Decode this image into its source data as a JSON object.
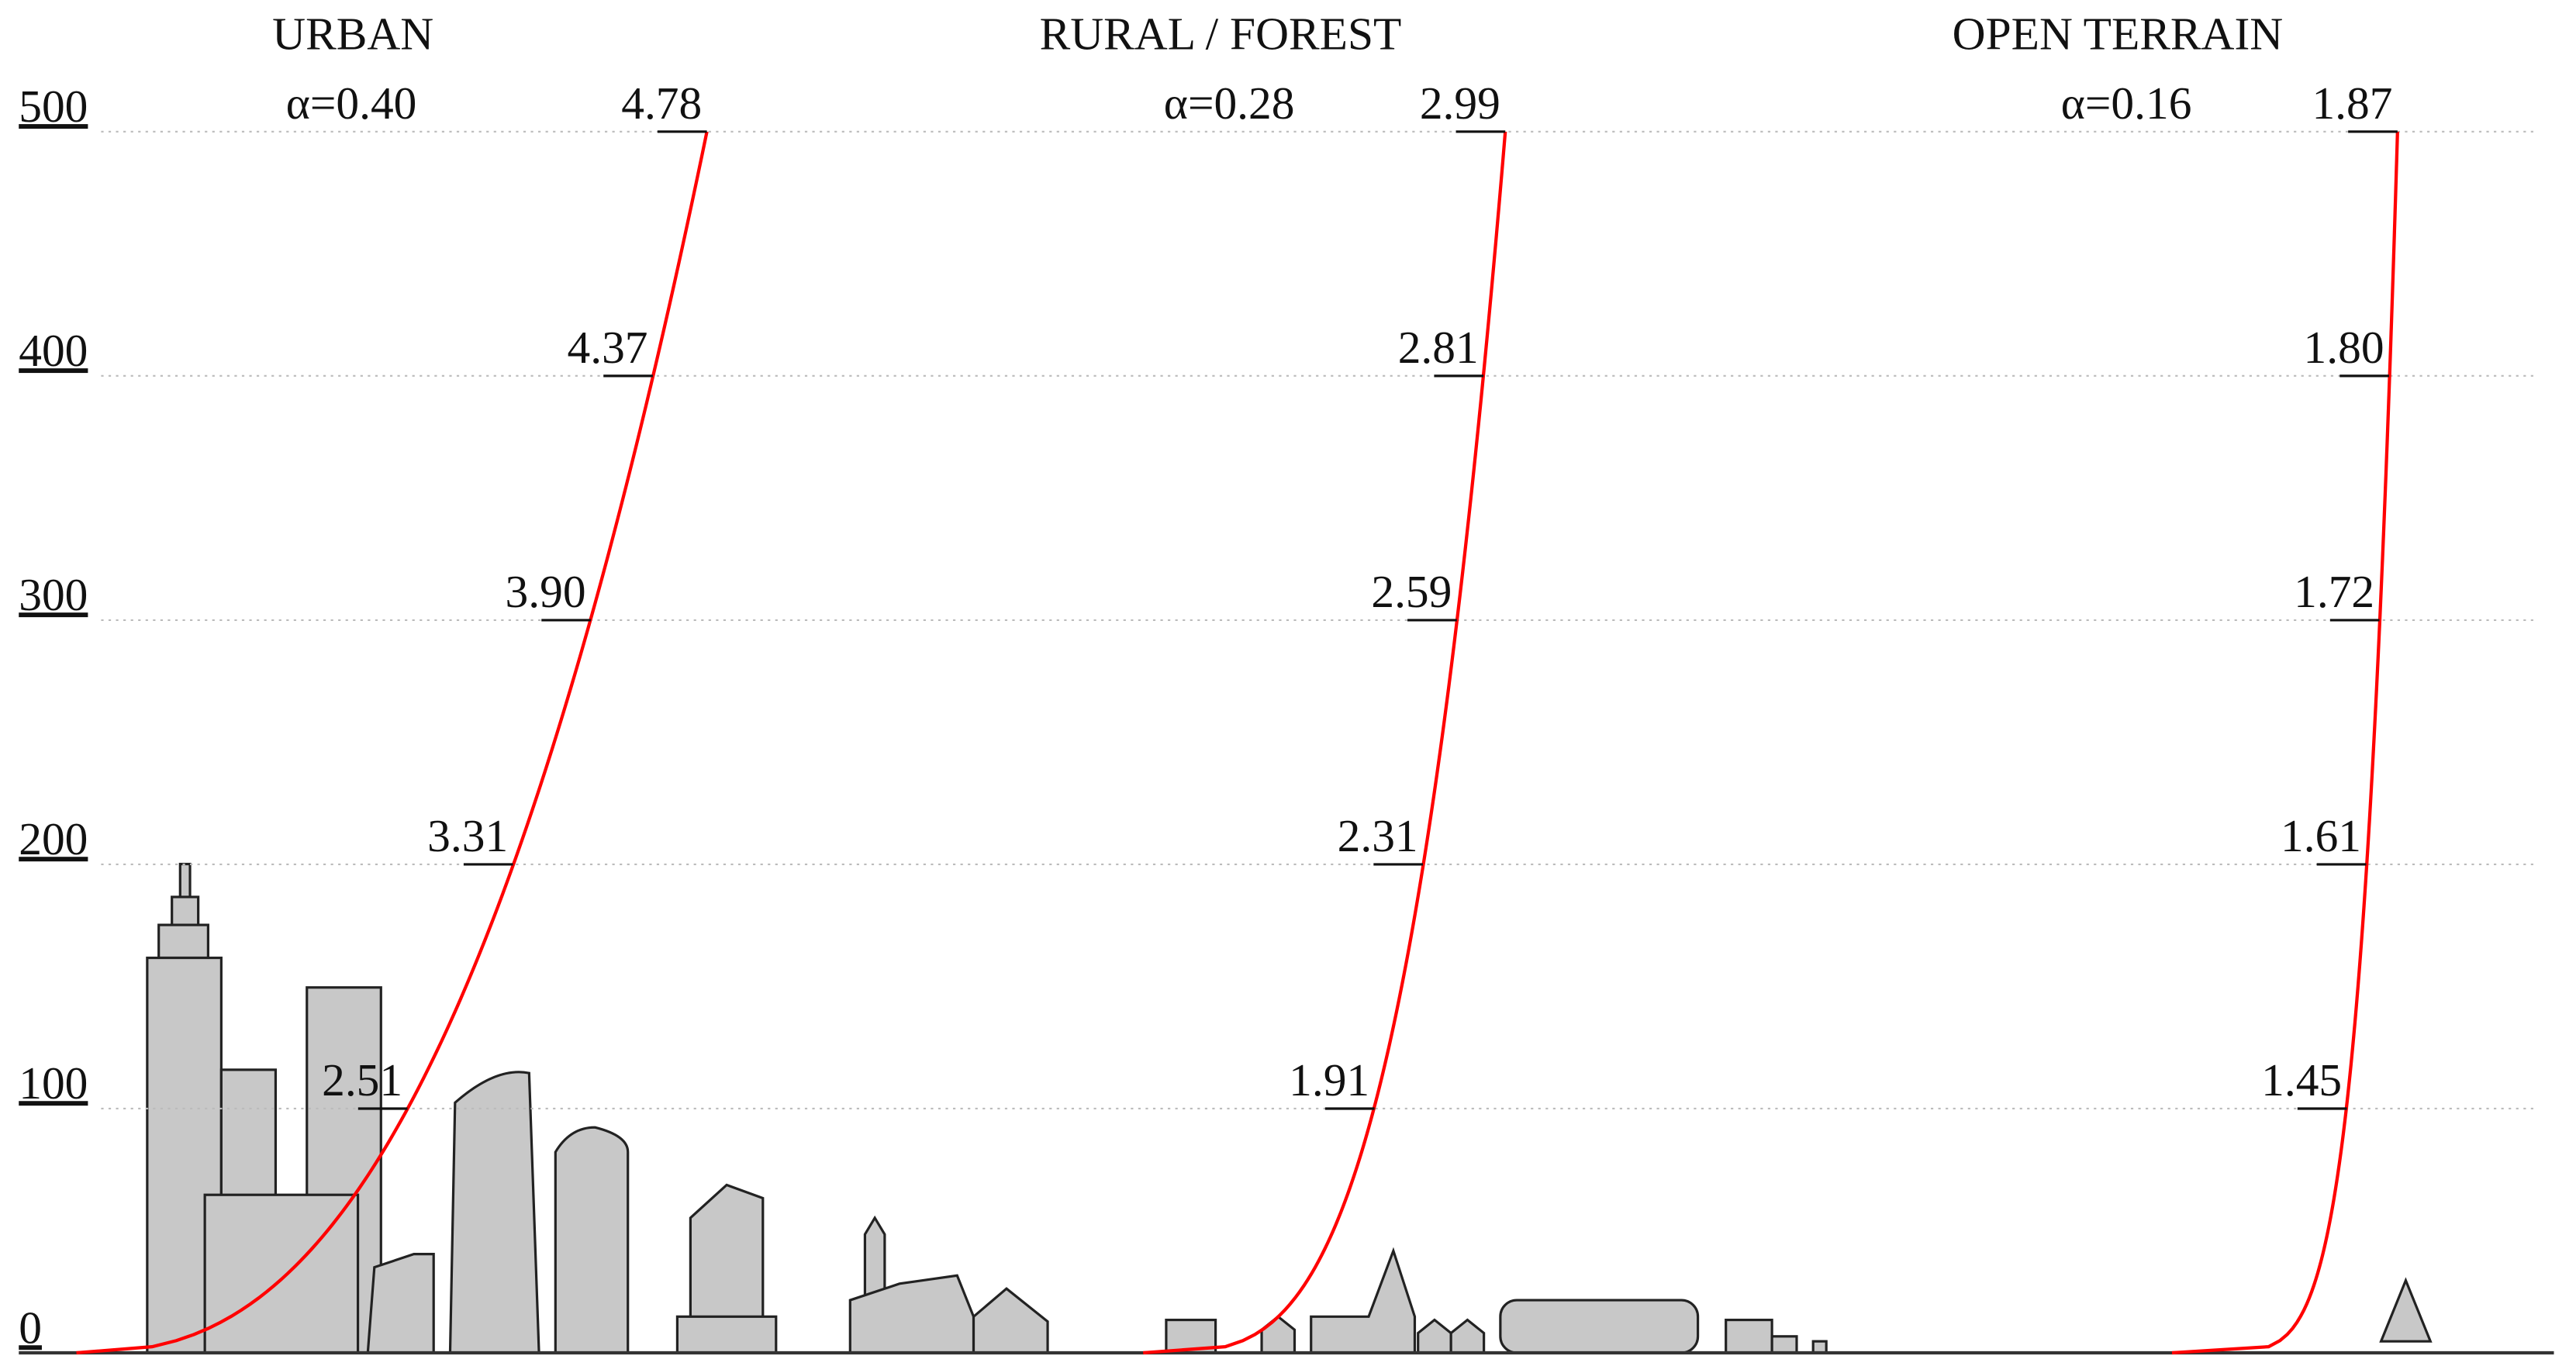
{
  "chart_data": {
    "type": "line",
    "ylim": [
      0,
      500
    ],
    "yticks": [
      0,
      100,
      200,
      300,
      400,
      500
    ],
    "grid": true,
    "y": [
      100,
      200,
      300,
      400,
      500
    ],
    "color": "#ff0000",
    "series": [
      {
        "name": "URBAN",
        "alpha": 0.4,
        "alpha_label": "α=0.40",
        "values": [
          2.51,
          3.31,
          3.9,
          4.37,
          4.78
        ],
        "value_labels": [
          "2.51",
          "3.31",
          "3.90",
          "4.37",
          "4.78"
        ]
      },
      {
        "name": "RURAL / FOREST",
        "alpha": 0.28,
        "alpha_label": "α=0.28",
        "values": [
          1.91,
          2.31,
          2.59,
          2.81,
          2.99
        ],
        "value_labels": [
          "1.91",
          "2.31",
          "2.59",
          "2.81",
          "2.99"
        ]
      },
      {
        "name": "OPEN TERRAIN",
        "alpha": 0.16,
        "alpha_label": "α=0.16",
        "values": [
          1.45,
          1.61,
          1.72,
          1.8,
          1.87
        ],
        "value_labels": [
          "1.45",
          "1.61",
          "1.72",
          "1.80",
          "1.87"
        ]
      }
    ]
  }
}
